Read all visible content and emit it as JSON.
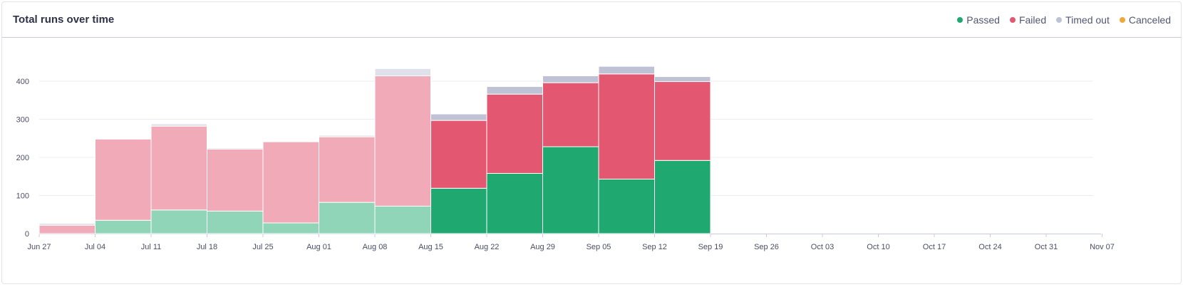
{
  "chart_data": {
    "type": "bar",
    "title": "Total runs over time",
    "stacked": true,
    "x_ticks": [
      "Jun 27",
      "Jul 04",
      "Jul 11",
      "Jul 18",
      "Jul 25",
      "Aug 01",
      "Aug 08",
      "Aug 15",
      "Aug 22",
      "Aug 29",
      "Sep 05",
      "Sep 12",
      "Sep 19",
      "Sep 26",
      "Oct 03",
      "Oct 10",
      "Oct 17",
      "Oct 24",
      "Oct 31",
      "Nov 07"
    ],
    "categories": [
      "Jun 27",
      "Jul 04",
      "Jul 11",
      "Jul 18",
      "Jul 25",
      "Aug 01",
      "Aug 08",
      "Aug 15",
      "Aug 22",
      "Aug 29",
      "Sep 05",
      "Sep 12"
    ],
    "faded_until_index": 6,
    "ylim": [
      0,
      450
    ],
    "y_ticks": [
      0,
      100,
      200,
      300,
      400
    ],
    "grid": true,
    "legend_position": "top-right",
    "series": [
      {
        "name": "Passed",
        "color": "#1fa971",
        "faded_color": "#90d5b8",
        "values": [
          0,
          35,
          62,
          59,
          28,
          82,
          72,
          119,
          158,
          228,
          143,
          192
        ]
      },
      {
        "name": "Failed",
        "color": "#e45770",
        "faded_color": "#f1abb8",
        "values": [
          22,
          213,
          220,
          163,
          213,
          172,
          342,
          178,
          208,
          168,
          276,
          207
        ]
      },
      {
        "name": "Timed out",
        "color": "#bfc2d4",
        "faded_color": "#dfe0ea",
        "values": [
          5,
          0,
          6,
          3,
          0,
          4,
          19,
          17,
          20,
          18,
          20,
          13
        ]
      },
      {
        "name": "Canceled",
        "color": "#f1a83a",
        "faded_color": "#f8d39c",
        "values": [
          0,
          0,
          0,
          0,
          0,
          0,
          0,
          0,
          0,
          0,
          0,
          0
        ]
      }
    ]
  }
}
